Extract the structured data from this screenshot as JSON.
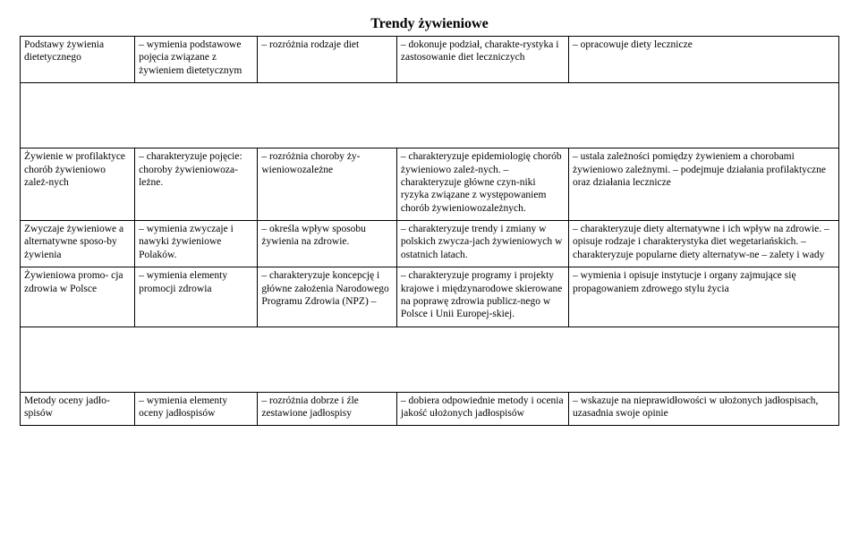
{
  "title": "Trendy żywieniowe",
  "rows": [
    {
      "c1": "Podstawy żywienia dietetycznego",
      "c2": "– wymienia podstawowe pojęcia związane z żywieniem dietetycznym",
      "c3": "– rozróżnia rodzaje diet",
      "c4": "– dokonuje podział, charakte-rystyka i zastosowanie diet leczniczych",
      "c5": "– opracowuje diety lecznicze"
    },
    {
      "c1": "Żywienie w profilaktyce chorób żywieniowo zależ-nych",
      "c2": "– charakteryzuje pojęcie: choroby żywieniowoza-leżne.",
      "c3": "– rozróżnia choroby ży-wieniowozależne",
      "c4": "– charakteryzuje epidemiologię chorób żywieniowo zależ-nych.\n– charakteryzuje główne czyn-niki ryzyka związane z występowaniem chorób żywieniowozależnych.",
      "c5": "– ustala zależności pomiędzy żywieniem a chorobami żywieniowo zależnymi.\n– podejmuje działania profilaktyczne oraz działania lecznicze"
    },
    {
      "c1": "Zwyczaje żywieniowe a alternatywne sposo-by żywienia",
      "c2": "– wymienia zwyczaje i nawyki żywieniowe Polaków.",
      "c3": "– określa wpływ sposobu żywienia na zdrowie.",
      "c4": "– charakteryzuje trendy i zmiany w polskich zwycza-jach żywieniowych w ostatnich latach.",
      "c5": "\n– charakteryzuje diety alternatywne i ich wpływ na zdrowie.\n– opisuje rodzaje i charakterystyka diet wegetariańskich.\n– charakteryzuje popularne diety alternatyw-ne – zalety i wady"
    },
    {
      "c1": "Żywieniowa promo- cja zdrowia w  Polsce",
      "c2": "– wymienia elementy promocji zdrowia",
      "c3": "– charakteryzuje koncepcję i główne założenia Narodowego Programu Zdrowia (NPZ) –",
      "c4": "– charakteryzuje programy i projekty krajowe i międzynarodowe skierowane na poprawę zdrowia publicz-nego w Polsce i Unii Europej-skiej.",
      "c5": "– wymienia i opisuje instytucje i organy zajmujące się propagowaniem zdrowego stylu życia"
    },
    {
      "c1": "Metody oceny jadło-spisów",
      "c2": "– wymienia elementy oceny jadłospisów",
      "c3": "– rozróżnia dobrze i źle zestawione jadłospisy",
      "c4": "– dobiera odpowiednie metody i ocenia jakość ułożonych jadłospisów",
      "c5": "– wskazuje na nieprawidłowości w ułożonych jadłospisach, uzasadnia swoje opinie"
    }
  ]
}
